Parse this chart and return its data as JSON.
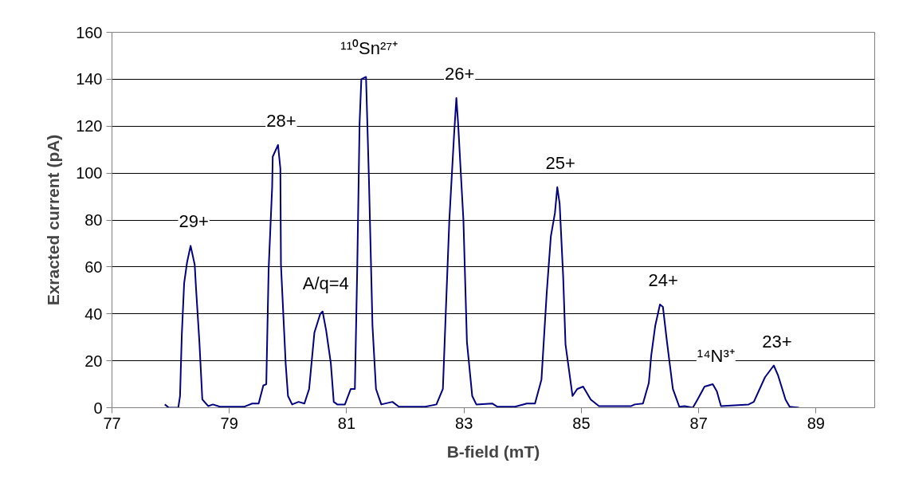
{
  "chart_data": {
    "type": "line",
    "xlabel": "B-field (mT)",
    "ylabel": "Exracted current (pA)",
    "x": [
      77.9,
      77.97,
      78.13,
      78.16,
      78.19,
      78.23,
      78.28,
      78.34,
      78.41,
      78.43,
      78.49,
      78.54,
      78.64,
      78.72,
      78.84,
      79.25,
      79.39,
      79.5,
      79.58,
      79.63,
      79.67,
      79.73,
      79.74,
      79.83,
      79.87,
      79.88,
      79.96,
      80.0,
      80.07,
      80.18,
      80.28,
      80.36,
      80.45,
      80.55,
      80.59,
      80.65,
      80.73,
      80.78,
      80.84,
      80.97,
      81.07,
      81.14,
      81.18,
      81.22,
      81.25,
      81.33,
      81.38,
      81.44,
      81.5,
      81.59,
      81.78,
      81.89,
      82.34,
      82.53,
      82.64,
      82.69,
      82.75,
      82.83,
      82.87,
      82.9,
      82.95,
      82.99,
      83.05,
      83.14,
      83.21,
      83.48,
      83.57,
      83.87,
      84.07,
      84.21,
      84.32,
      84.41,
      84.48,
      84.55,
      84.59,
      84.63,
      84.69,
      84.73,
      84.85,
      84.93,
      85.03,
      85.16,
      85.3,
      85.85,
      85.91,
      86.05,
      86.15,
      86.19,
      86.26,
      86.34,
      86.39,
      86.46,
      86.56,
      86.67,
      86.76,
      86.9,
      86.98,
      87.1,
      87.24,
      87.31,
      87.38,
      87.85,
      87.94,
      88.13,
      88.28,
      88.35,
      88.48,
      88.55,
      88.71
    ],
    "series": [
      {
        "color": "#000080",
        "values": [
          1.4,
          0,
          0,
          5,
          31,
          53,
          62,
          69,
          61,
          52,
          28,
          3.5,
          0.7,
          1.4,
          0.4,
          0.4,
          1.8,
          1.8,
          9.5,
          10,
          59,
          94,
          107,
          112,
          102,
          61,
          19,
          5,
          1.4,
          2.5,
          1.8,
          8,
          32,
          40,
          41,
          33,
          19,
          2.5,
          1.4,
          1.4,
          8,
          8,
          59,
          121,
          140,
          141,
          97,
          35,
          8,
          1.4,
          2.5,
          0.4,
          0.4,
          1.4,
          8,
          41,
          80,
          116,
          132,
          121,
          98,
          80,
          28,
          5,
          1.4,
          1.8,
          0.4,
          0.4,
          1.8,
          1.8,
          12,
          49,
          73,
          83,
          94,
          87,
          56,
          27,
          5,
          8,
          9,
          3.5,
          0.7,
          0.7,
          1.4,
          1.8,
          10.5,
          22,
          35,
          44,
          43,
          28,
          8,
          0.4,
          0.7,
          0,
          3.5,
          9,
          10,
          7,
          0.7,
          1.4,
          2.5,
          13,
          18,
          14,
          3.5,
          0.4,
          0
        ]
      }
    ],
    "xlim": [
      77,
      90
    ],
    "xticks": [
      77,
      79,
      81,
      83,
      85,
      87,
      89
    ],
    "ylim": [
      0,
      160
    ],
    "yticks": [
      0,
      20,
      40,
      60,
      80,
      100,
      120,
      140,
      160
    ],
    "grid": "y",
    "marker": "none",
    "line_style": "solid",
    "annotations": [
      {
        "text": "29+",
        "x": 78.34,
        "y": 69
      },
      {
        "text": "28+",
        "x": 79.83,
        "y": 112
      },
      {
        "text": "A/q=4",
        "x": 80.59,
        "y": 41
      },
      {
        "text": "¹¹⁰Sn²⁷⁺",
        "x": 81.33,
        "y": 141
      },
      {
        "text": "26+",
        "x": 82.87,
        "y": 132
      },
      {
        "text": "25+",
        "x": 84.59,
        "y": 94
      },
      {
        "text": "24+",
        "x": 86.34,
        "y": 44
      },
      {
        "text": "¹⁴N³⁺",
        "x": 87.24,
        "y": 10
      },
      {
        "text": "23+",
        "x": 88.28,
        "y": 18
      }
    ]
  }
}
